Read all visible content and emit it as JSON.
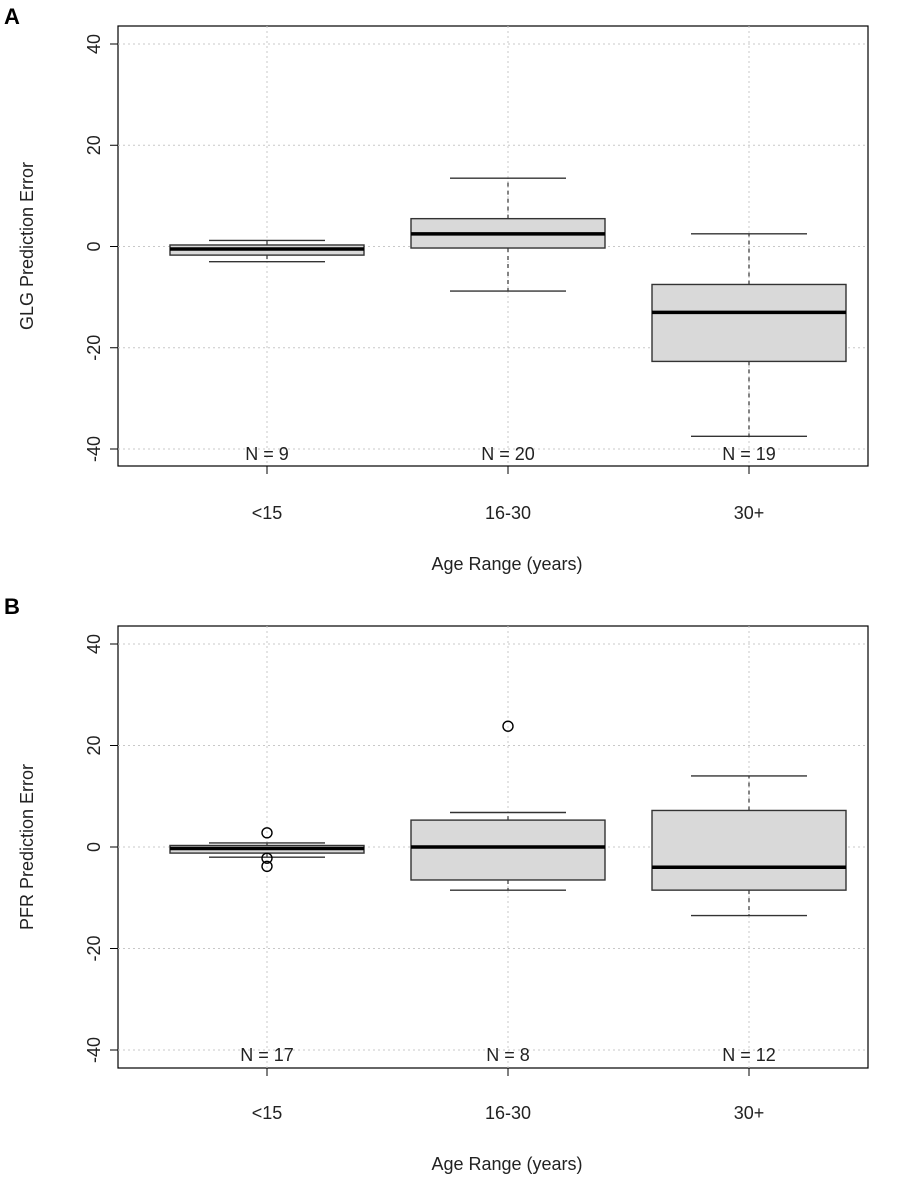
{
  "colors": {
    "box_fill": "#d9d9d9",
    "stroke": "#000000",
    "whisker": "#333333",
    "grid": "#c8c8c8"
  },
  "chart_data": [
    {
      "panel_label": "A",
      "type": "boxplot",
      "xlabel": "Age Range (years)",
      "ylabel": "GLG Prediction Error",
      "ylim": [
        -40,
        40
      ],
      "y_ticks": [
        "40",
        "20",
        "0",
        "-20",
        "-40"
      ],
      "y_tick_values": [
        40,
        20,
        0,
        -20,
        -40
      ],
      "grid": true,
      "categories": [
        "<15",
        "16-30",
        "30+"
      ],
      "boxes": [
        {
          "category": "<15",
          "whisker_low": -3,
          "q1": -1.7,
          "median": -0.5,
          "q3": 0.3,
          "whisker_high": 1.2,
          "outliers": [],
          "n_label": "N = 9"
        },
        {
          "category": "16-30",
          "whisker_low": -8.8,
          "q1": -0.3,
          "median": 2.5,
          "q3": 5.5,
          "whisker_high": 13.5,
          "outliers": [],
          "n_label": "N = 20"
        },
        {
          "category": "30+",
          "whisker_low": -37.5,
          "q1": -22.7,
          "median": -13,
          "q3": -7.5,
          "whisker_high": 2.5,
          "outliers": [],
          "n_label": "N = 19"
        }
      ]
    },
    {
      "panel_label": "B",
      "type": "boxplot",
      "xlabel": "Age Range (years)",
      "ylabel": "PFR Prediction Error",
      "ylim": [
        -40,
        40
      ],
      "y_ticks": [
        "40",
        "20",
        "0",
        "-20",
        "-40"
      ],
      "y_tick_values": [
        40,
        20,
        0,
        -20,
        -40
      ],
      "grid": true,
      "categories": [
        "<15",
        "16-30",
        "30+"
      ],
      "boxes": [
        {
          "category": "<15",
          "whisker_low": -2,
          "q1": -1.2,
          "median": -0.3,
          "q3": 0.3,
          "whisker_high": 0.8,
          "outliers": [
            2.8,
            -2.2,
            -3.8
          ],
          "n_label": "N = 17"
        },
        {
          "category": "16-30",
          "whisker_low": -8.5,
          "q1": -6.5,
          "median": 0,
          "q3": 5.3,
          "whisker_high": 6.8,
          "outliers": [
            23.8
          ],
          "n_label": "N = 8"
        },
        {
          "category": "30+",
          "whisker_low": -13.5,
          "q1": -8.5,
          "median": -4,
          "q3": 7.2,
          "whisker_high": 14,
          "outliers": [],
          "n_label": "N = 12"
        }
      ]
    }
  ]
}
